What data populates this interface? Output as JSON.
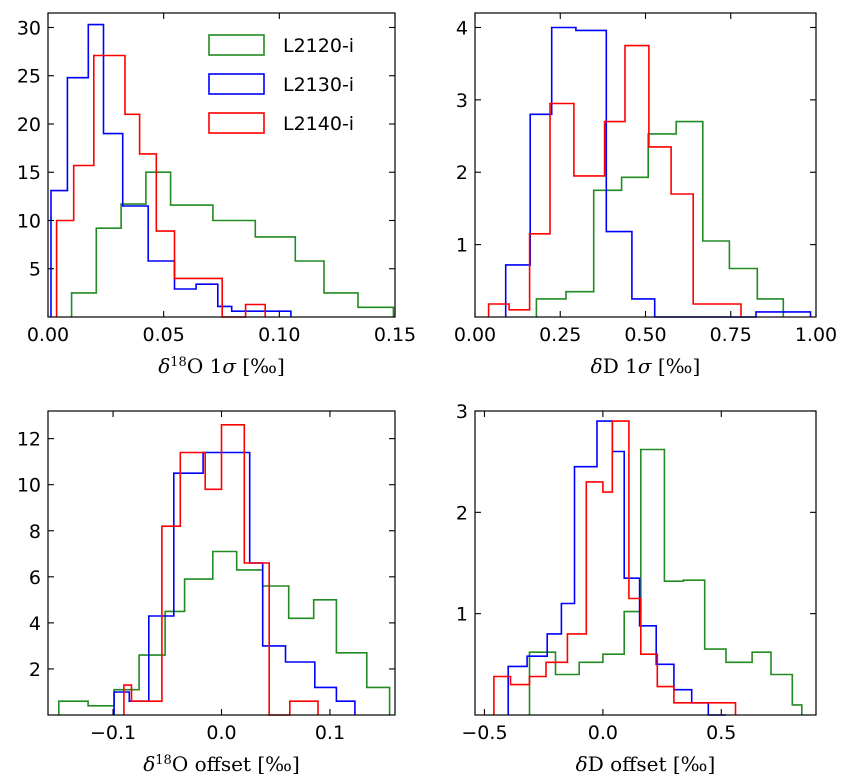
{
  "chart_data": [
    {
      "type": "histogram-step",
      "xlabel": "δ18O 1σ [‰]",
      "xlim": [
        0.0,
        0.15
      ],
      "ylim": [
        0,
        31.5
      ],
      "xticks": [
        0.0,
        0.05,
        0.1,
        0.15
      ],
      "xtick_labels": [
        "0.00",
        "0.05",
        "0.10",
        "0.15"
      ],
      "yticks": [
        5,
        10,
        15,
        20,
        25,
        30
      ],
      "ytick_labels": [
        "5",
        "10",
        "15",
        "20",
        "25",
        "30"
      ],
      "legend": {
        "placement": "top-right",
        "entries": [
          "L2120-i",
          "L2130-i",
          "L2140-i"
        ]
      },
      "series": [
        {
          "name": "L2120-i",
          "color": "#228b22",
          "edges": [
            0.0102,
            0.0209,
            0.0316,
            0.0423,
            0.053,
            0.0713,
            0.0896,
            0.1069,
            0.1193,
            0.134,
            0.1493
          ],
          "counts": [
            2.5,
            9.2,
            11.7,
            15.0,
            11.6,
            10.0,
            8.3,
            5.8,
            2.5,
            1.0
          ]
        },
        {
          "name": "L2130-i",
          "color": "#0000ff",
          "edges": [
            0.0013,
            0.0084,
            0.0174,
            0.024,
            0.0323,
            0.0433,
            0.0547,
            0.064,
            0.0734,
            0.0794,
            0.0894,
            0.105
          ],
          "counts": [
            13.1,
            24.8,
            30.3,
            19.0,
            11.5,
            5.8,
            2.9,
            3.4,
            1.1,
            0.6,
            0.6
          ]
        },
        {
          "name": "L2140-i",
          "color": "#ff0000",
          "edges": [
            0.0037,
            0.0111,
            0.0198,
            0.0333,
            0.0396,
            0.0468,
            0.0547,
            0.064,
            0.0753,
            0.0854,
            0.0939
          ],
          "counts": [
            10.0,
            15.7,
            27.1,
            21.0,
            16.9,
            8.9,
            4.0,
            4.0,
            0.0,
            1.3
          ]
        }
      ]
    },
    {
      "type": "histogram-step",
      "xlabel": "δD 1σ [‰]",
      "xlim": [
        0.0,
        1.0
      ],
      "ylim": [
        0,
        4.2
      ],
      "xticks": [
        0.0,
        0.25,
        0.5,
        0.75,
        1.0
      ],
      "xtick_labels": [
        "0.00",
        "0.25",
        "0.50",
        "0.75",
        "1.00"
      ],
      "yticks": [
        1,
        2,
        3,
        4
      ],
      "ytick_labels": [
        "1",
        "2",
        "3",
        "4"
      ],
      "series": [
        {
          "name": "L2120-i",
          "color": "#228b22",
          "edges": [
            0.18,
            0.267,
            0.348,
            0.43,
            0.508,
            0.59,
            0.668,
            0.746,
            0.828,
            0.904
          ],
          "counts": [
            0.25,
            0.35,
            1.75,
            1.93,
            2.53,
            2.7,
            1.05,
            0.67,
            0.25
          ]
        },
        {
          "name": "L2130-i",
          "color": "#0000ff",
          "edges": [
            0.09,
            0.162,
            0.225,
            0.296,
            0.385,
            0.46,
            0.527,
            0.595,
            0.7,
            0.755,
            0.824,
            0.984
          ],
          "counts": [
            0.72,
            2.8,
            4.0,
            3.96,
            1.18,
            0.25,
            0.0,
            0.0,
            0.0,
            0.0,
            0.07
          ]
        },
        {
          "name": "L2140-i",
          "color": "#ff0000",
          "edges": [
            0.04,
            0.1,
            0.16,
            0.22,
            0.29,
            0.38,
            0.44,
            0.51,
            0.575,
            0.64,
            0.71,
            0.78
          ],
          "counts": [
            0.18,
            0.1,
            1.15,
            2.95,
            1.95,
            2.7,
            3.75,
            2.35,
            1.7,
            0.18,
            0.18
          ]
        }
      ]
    },
    {
      "type": "histogram-step",
      "xlabel": "δ18O offset [‰]",
      "xlim": [
        -0.16,
        0.16
      ],
      "ylim": [
        0,
        13.2
      ],
      "xticks": [
        -0.1,
        0.0,
        0.1
      ],
      "xtick_labels": [
        "−0.1",
        "0.0",
        "0.1"
      ],
      "yticks": [
        2,
        4,
        6,
        8,
        10,
        12
      ],
      "ytick_labels": [
        "2",
        "4",
        "6",
        "8",
        "10",
        "12"
      ],
      "series": [
        {
          "name": "L2120-i",
          "color": "#228b22",
          "edges": [
            -0.15,
            -0.123,
            -0.099,
            -0.076,
            -0.052,
            -0.034,
            -0.008,
            0.014,
            0.038,
            0.062,
            0.085,
            0.106,
            0.134,
            0.155
          ],
          "counts": [
            0.6,
            0.4,
            1.1,
            2.6,
            4.5,
            5.9,
            7.1,
            6.3,
            5.6,
            4.2,
            5.0,
            2.7,
            1.2
          ]
        },
        {
          "name": "L2130-i",
          "color": "#0000ff",
          "edges": [
            -0.099,
            -0.085,
            -0.067,
            -0.044,
            -0.017,
            0.0,
            0.026,
            0.038,
            0.059,
            0.086,
            0.106,
            0.123
          ],
          "counts": [
            1.0,
            0.6,
            4.3,
            10.5,
            11.4,
            11.4,
            6.6,
            3.0,
            2.3,
            1.2,
            0.6
          ]
        },
        {
          "name": "L2140-i",
          "color": "#ff0000",
          "edges": [
            -0.09,
            -0.083,
            -0.055,
            -0.038,
            -0.015,
            0.0,
            0.021,
            0.044,
            0.063,
            0.089
          ],
          "counts": [
            1.3,
            0.6,
            8.2,
            11.4,
            9.8,
            12.6,
            6.6,
            0.0,
            0.6
          ]
        }
      ]
    },
    {
      "type": "histogram-step",
      "xlabel": "δD offset [‰]",
      "xlim": [
        -0.54,
        0.9
      ],
      "ylim": [
        0,
        3.0
      ],
      "xticks": [
        -0.5,
        0.0,
        0.5
      ],
      "xtick_labels": [
        "−0.5",
        "0.0",
        "0.5"
      ],
      "yticks": [
        1,
        2,
        3
      ],
      "ytick_labels": [
        "1",
        "2",
        "3"
      ],
      "series": [
        {
          "name": "L2120-i",
          "color": "#228b22",
          "edges": [
            -0.31,
            -0.2,
            -0.1,
            0.0,
            0.09,
            0.16,
            0.26,
            0.34,
            0.43,
            0.52,
            0.63,
            0.71,
            0.8,
            0.84
          ],
          "counts": [
            0.62,
            0.4,
            0.52,
            0.6,
            1.02,
            2.62,
            1.32,
            1.33,
            0.65,
            0.52,
            0.62,
            0.4,
            0.1
          ]
        },
        {
          "name": "L2130-i",
          "color": "#0000ff",
          "edges": [
            -0.4,
            -0.32,
            -0.235,
            -0.175,
            -0.12,
            -0.025,
            0.04,
            0.09,
            0.155,
            0.225,
            0.3,
            0.375,
            0.445,
            0.52
          ],
          "counts": [
            0.48,
            0.58,
            0.8,
            1.1,
            2.45,
            2.9,
            2.6,
            1.35,
            0.88,
            0.5,
            0.25,
            0.12,
            0.0
          ]
        },
        {
          "name": "L2140-i",
          "color": "#ff0000",
          "edges": [
            -0.46,
            -0.39,
            -0.31,
            -0.24,
            -0.15,
            -0.07,
            0.0,
            0.04,
            0.11,
            0.16,
            0.23,
            0.3,
            0.4,
            0.56
          ],
          "counts": [
            0.38,
            0.3,
            0.38,
            0.52,
            0.8,
            2.3,
            2.2,
            2.9,
            1.15,
            0.6,
            0.28,
            0.12,
            0.12
          ]
        }
      ]
    }
  ]
}
